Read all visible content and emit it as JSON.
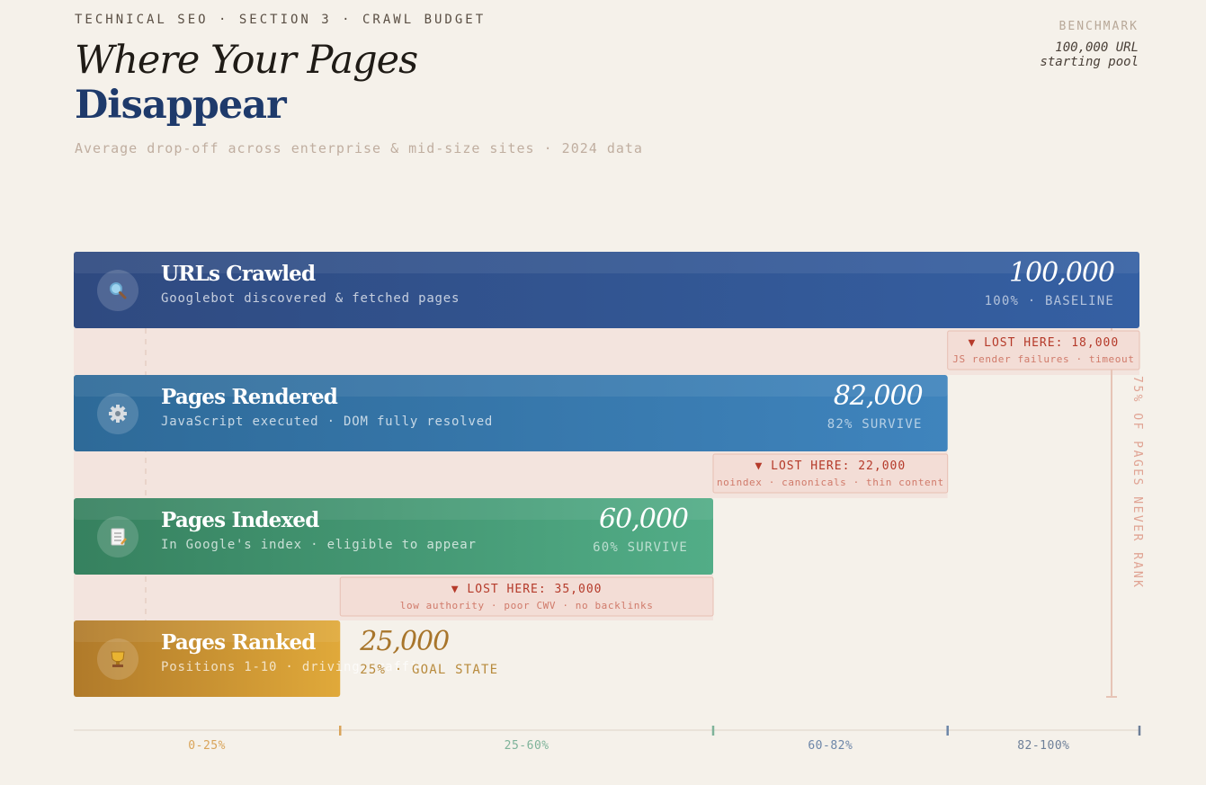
{
  "header": {
    "eyebrow": "TECHNICAL SEO · SECTION 3 · CRAWL BUDGET",
    "title_line1": "Where Your Pages",
    "title_line2": "Disappear",
    "subtitle": "Average drop-off across enterprise & mid-size sites · 2024 data"
  },
  "benchmark": {
    "label": "BENCHMARK",
    "value_line1": "100,000 URL",
    "value_line2": "starting pool"
  },
  "chart_data": {
    "type": "bar",
    "orientation": "horizontal",
    "max": 100000,
    "stages": [
      {
        "name": "URLs Crawled",
        "description": "Googlebot discovered & fetched pages",
        "value": 100000,
        "value_label": "100,000",
        "pct_label": "100% · BASELINE",
        "icon": "magnifier-icon",
        "color_start": "#2f4a80",
        "color_end": "#3560a3"
      },
      {
        "name": "Pages Rendered",
        "description": "JavaScript executed · DOM fully resolved",
        "value": 82000,
        "value_label": "82,000",
        "pct_label": "82% SURVIVE",
        "icon": "gear-icon",
        "color_start": "#2e6a98",
        "color_end": "#3f84bd"
      },
      {
        "name": "Pages Indexed",
        "description": "In Google's index · eligible to appear",
        "value": 60000,
        "value_label": "60,000",
        "pct_label": "60% SURVIVE",
        "icon": "document-icon",
        "color_start": "#36815f",
        "color_end": "#52ad87"
      },
      {
        "name": "Pages Ranked",
        "description": "Positions 1-10 · driving traffic",
        "value": 25000,
        "value_label": "25,000",
        "pct_label": "25% · GOAL STATE",
        "icon": "trophy-icon",
        "color_start": "#b07a2a",
        "color_end": "#e0a93a"
      }
    ],
    "losses": [
      {
        "label": "▼ LOST HERE: 18,000",
        "value": 18000,
        "reason": "JS render failures · timeout"
      },
      {
        "label": "▼ LOST HERE: 22,000",
        "value": 22000,
        "reason": "noindex · canonicals · thin content"
      },
      {
        "label": "▼ LOST HERE: 35,000",
        "value": 35000,
        "reason": "low authority · poor CWV · no backlinks"
      }
    ],
    "side_note": "75% OF PAGES NEVER RANK",
    "axis": [
      {
        "label": "0-25%",
        "from": 0,
        "to": 25,
        "color": "#d9a45a"
      },
      {
        "label": "25-60%",
        "from": 25,
        "to": 60,
        "color": "#7fb39a"
      },
      {
        "label": "60-82%",
        "from": 60,
        "to": 82,
        "color": "#6d86a8"
      },
      {
        "label": "82-100%",
        "from": 82,
        "to": 100,
        "color": "#6d7f98"
      }
    ]
  }
}
